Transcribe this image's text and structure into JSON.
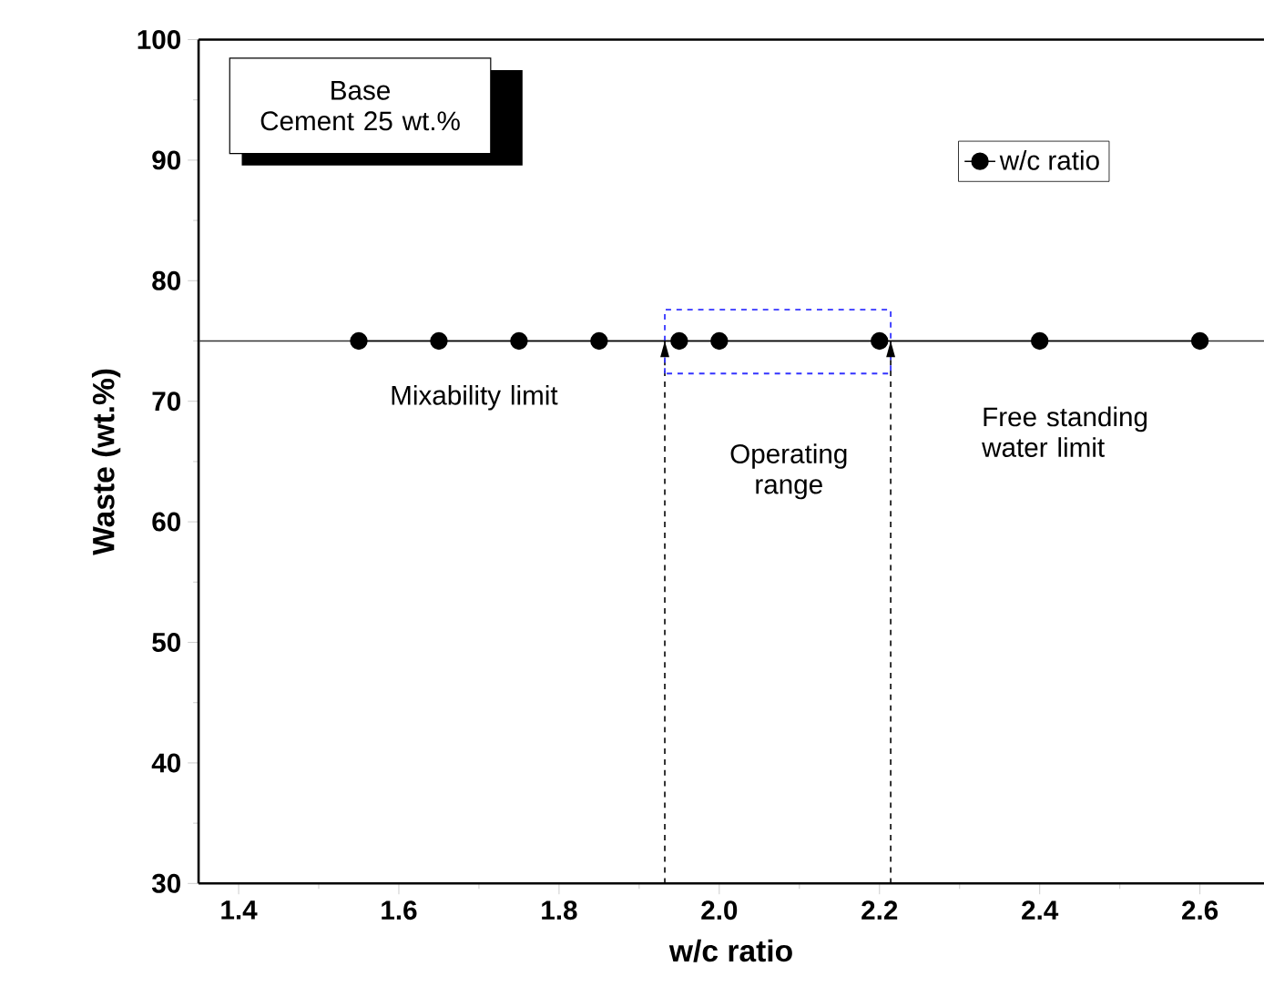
{
  "chart_data": {
    "type": "line",
    "xlabel": "w/c ratio",
    "ylabel": "Waste (wt.%)",
    "x": [
      1.55,
      1.65,
      1.75,
      1.85,
      1.95,
      2.0,
      2.2,
      2.4,
      2.6
    ],
    "series": [
      {
        "name": "w/c ratio",
        "color": "#000000",
        "values": [
          75,
          75,
          75,
          75,
          75,
          75,
          75,
          75,
          75
        ]
      }
    ],
    "xlim": [
      1.35,
      2.68
    ],
    "ylim": [
      30,
      100
    ],
    "xticks": [
      1.4,
      1.6,
      1.8,
      {
        "value": 2.0,
        "label": "2.0"
      },
      2.2,
      2.4,
      2.6
    ],
    "yticks": [
      30,
      40,
      50,
      60,
      70,
      80,
      90,
      100
    ],
    "marker": "circle",
    "line_style": "solid",
    "grid": false,
    "legend": "top right",
    "ref_lines": [
      {
        "axis": "y",
        "value": 75,
        "color": "#333333",
        "line_style": "solid"
      },
      {
        "axis": "x",
        "value": 1.932,
        "color": "#000000",
        "line_style": "dashed"
      },
      {
        "axis": "x",
        "value": 2.214,
        "color": "#000000",
        "line_style": "dashed"
      }
    ],
    "annotations": [
      "Base\nCement 25 wt.%",
      "Mixability  limit",
      "Operating\nrange",
      "Free standing\nwater limit"
    ]
  }
}
